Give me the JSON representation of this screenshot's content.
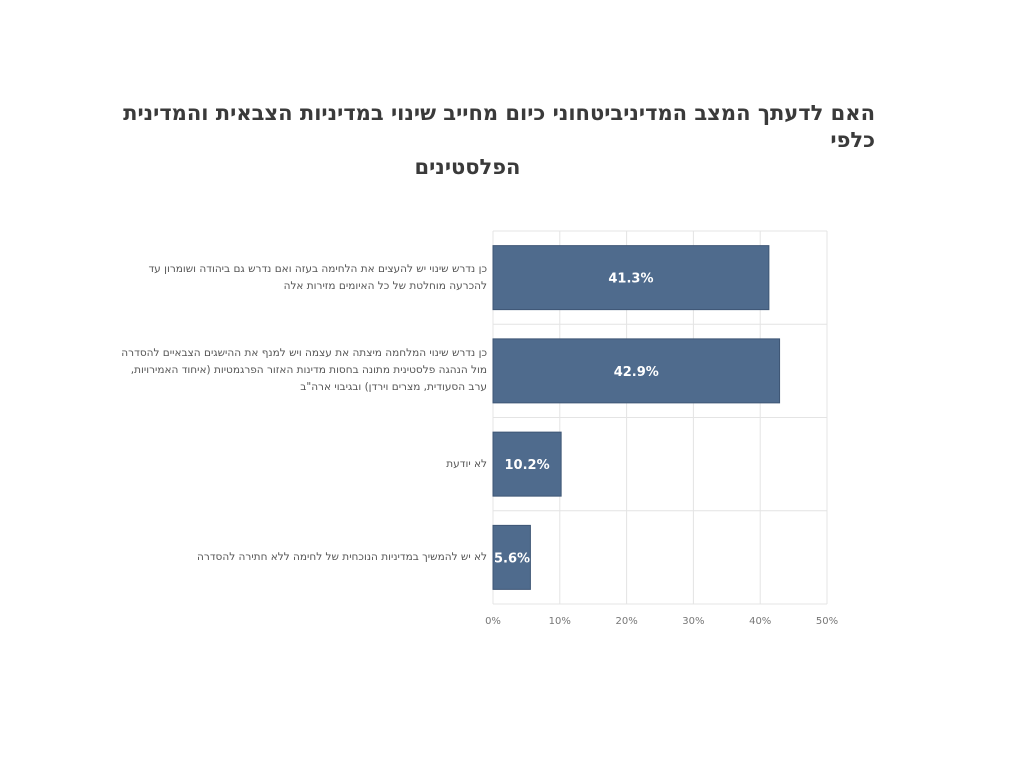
{
  "chart_data": {
    "type": "bar",
    "orientation": "horizontal",
    "title_lines": [
      "האם לדעתך המצב המדיניביטחוני כיום מחייב שינוי במדיניות הצבאית והמדינית כלפי",
      "הפלסטינים"
    ],
    "categories": [
      [
        "כן נדרש שינוי  יש להעצים את הלחימה בעזה ואם נדרש גם ביהודה ושומרון עד",
        "להכרעה מוחלטת של כל האיומים מזירות אלה"
      ],
      [
        "כן נדרש שינוי  המלחמה מיצתה את עצמה ויש למנף את ההישגים הצבאיים להסדרה",
        "מול הנהגה פלסטינית מתונה בחסות מדינות האזור הפרגמטיות (איחוד האמירויות,",
        "ערב הסעודית, מצרים וירדן) ובגיבוי ארה\"ב"
      ],
      [
        "לא יודעת"
      ],
      [
        "לא יש להמשיך במדיניות הנוכחית של לחימה ללא חתירה להסדרה"
      ]
    ],
    "values": [
      41.3,
      42.9,
      10.2,
      5.6
    ],
    "value_labels": [
      "41.3%",
      "42.9%",
      "10.2%",
      "5.6%"
    ],
    "x_ticks": [
      "0%",
      "10%",
      "20%",
      "30%",
      "40%",
      "50%"
    ],
    "xlim": [
      0,
      50
    ],
    "grid": true,
    "colors": {
      "bar": "#4f6b8d",
      "bar_edge": "#3e5675",
      "grid": "#e4e4e4",
      "tick_text": "#777777",
      "value_text": "#ffffff"
    }
  }
}
